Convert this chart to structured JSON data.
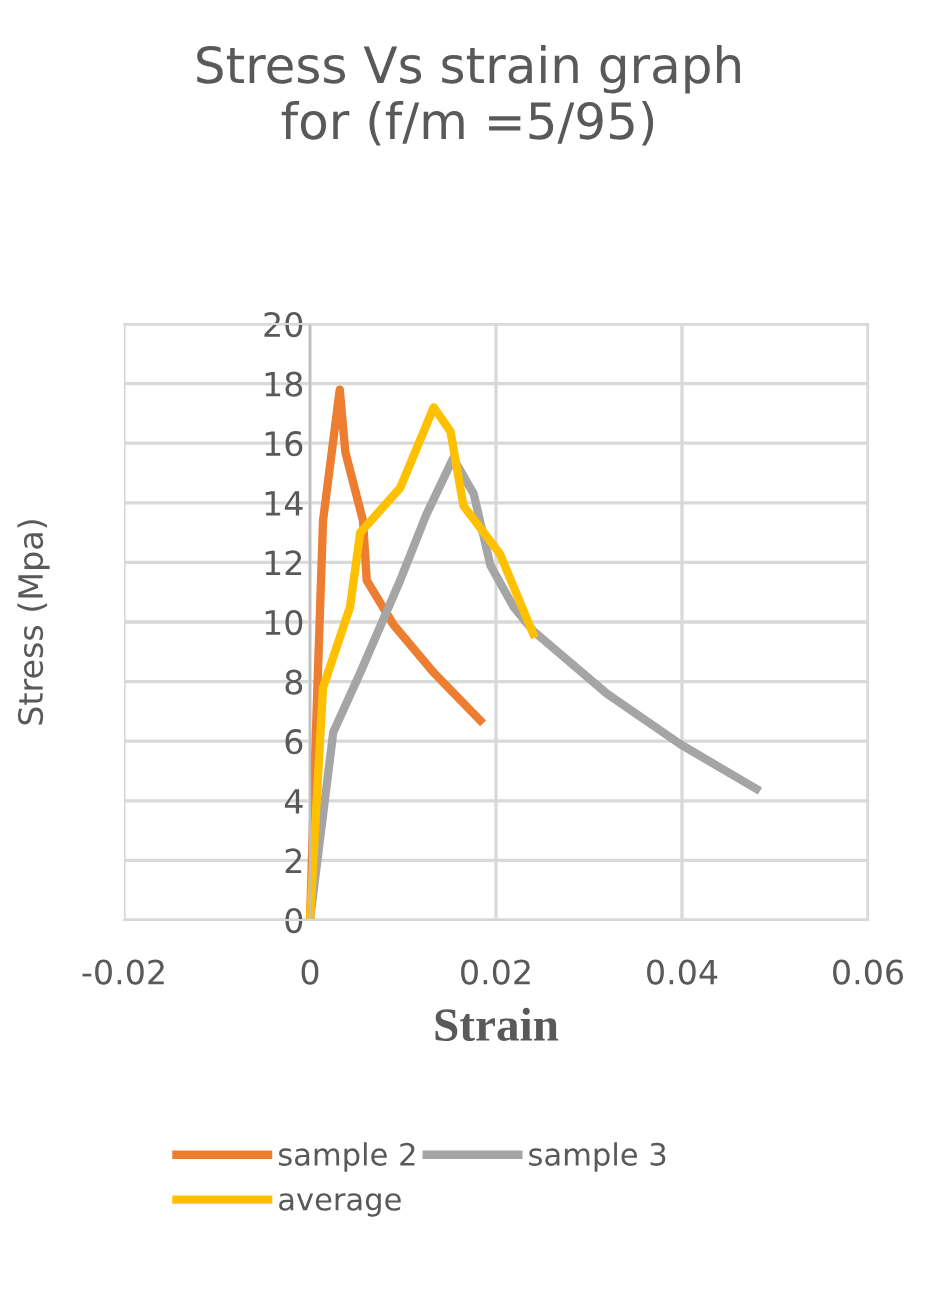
{
  "chart_data": {
    "type": "line",
    "title": "Stress Vs strain graph\nfor (f/m =5/95)",
    "xlabel": "Strain",
    "ylabel": "Stress (Mpa)",
    "xlim": [
      -0.02,
      0.06
    ],
    "xticks": [
      -0.02,
      0,
      0.02,
      0.04,
      0.06
    ],
    "ylim": [
      0,
      20
    ],
    "yticks": [
      0,
      2,
      4,
      6,
      8,
      10,
      12,
      14,
      16,
      18,
      20
    ],
    "grid": true,
    "legend": "bottom",
    "marker": "none",
    "line_style": "solid",
    "series": [
      {
        "name": "sample 2",
        "color": "#ed7d31",
        "x": [
          0,
          0.0007,
          0.0014,
          0.0032,
          0.0038,
          0.0057,
          0.0061,
          0.009,
          0.0133,
          0.0183
        ],
        "values": [
          0,
          6.9,
          13.4,
          17.8,
          15.7,
          13.4,
          11.4,
          9.9,
          8.3,
          6.7
        ]
      },
      {
        "name": "sample 3",
        "color": "#a5a5a5",
        "x": [
          0,
          0.0025,
          0.0054,
          0.0097,
          0.0125,
          0.0154,
          0.0176,
          0.0194,
          0.0219,
          0.024,
          0.0319,
          0.0398,
          0.048
        ],
        "values": [
          0,
          6.3,
          8.3,
          11.4,
          13.6,
          15.5,
          14.3,
          11.9,
          10.5,
          9.7,
          7.6,
          5.9,
          4.4
        ]
      },
      {
        "name": "average",
        "color": "#ffc000",
        "x": [
          0,
          0.0014,
          0.0043,
          0.0054,
          0.0097,
          0.0133,
          0.0151,
          0.0165,
          0.0204,
          0.024
        ],
        "values": [
          0,
          7.8,
          10.5,
          13.0,
          14.5,
          17.2,
          16.4,
          13.9,
          12.3,
          9.6
        ]
      }
    ]
  }
}
